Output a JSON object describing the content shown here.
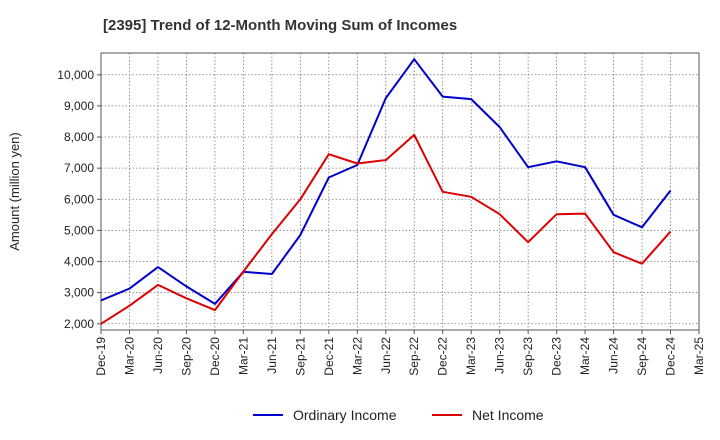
{
  "chart_data": {
    "type": "line",
    "title": "[2395]  Trend of 12-Month Moving Sum of Incomes",
    "xlabel": "",
    "ylabel": "Amount (million yen)",
    "ylim": [
      1800,
      10700
    ],
    "yticks": [
      2000,
      3000,
      4000,
      5000,
      6000,
      7000,
      8000,
      9000,
      10000
    ],
    "ytick_labels": [
      "2,000",
      "3,000",
      "4,000",
      "5,000",
      "6,000",
      "7,000",
      "8,000",
      "9,000",
      "10,000"
    ],
    "x": [
      "Dec-19",
      "Mar-20",
      "Jun-20",
      "Sep-20",
      "Dec-20",
      "Mar-21",
      "Jun-21",
      "Sep-21",
      "Dec-21",
      "Mar-22",
      "Jun-22",
      "Sep-22",
      "Dec-22",
      "Mar-23",
      "Jun-23",
      "Sep-23",
      "Dec-23",
      "Mar-24",
      "Jun-24",
      "Sep-24",
      "Dec-24",
      "Mar-25"
    ],
    "grid": true,
    "legend_position": "bottom-center",
    "series": [
      {
        "name": "Ordinary Income",
        "color": "#0000cc",
        "values": [
          2750,
          3130,
          3820,
          3200,
          2640,
          3670,
          3600,
          4850,
          6700,
          7100,
          9250,
          10500,
          9300,
          9220,
          8320,
          7030,
          7220,
          7030,
          5500,
          5100,
          6280,
          null
        ]
      },
      {
        "name": "Net Income",
        "color": "#dd0000",
        "values": [
          2000,
          2580,
          3250,
          2820,
          2440,
          3680,
          4880,
          6000,
          7450,
          7150,
          7260,
          8070,
          6240,
          6080,
          5520,
          4620,
          5520,
          5540,
          4300,
          3930,
          4960,
          null
        ]
      }
    ]
  }
}
